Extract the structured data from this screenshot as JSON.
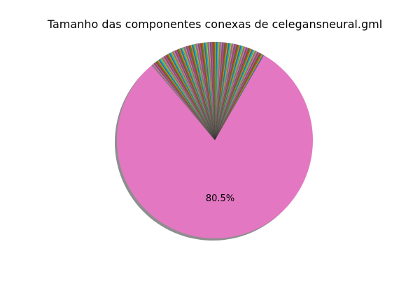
{
  "chart_data": {
    "type": "pie",
    "title": "Tamanho das componentes conexas de celegansneural.gml",
    "shadow": true,
    "start_angle_deg": 60,
    "major_slice": {
      "percent": 80.5,
      "label": "80.5%",
      "color": "#e377c2"
    },
    "minor_slices": {
      "count": 98,
      "percent_each": 0.199,
      "colors": [
        "#1f77b4",
        "#ff7f0e",
        "#2ca02c",
        "#d62728",
        "#9467bd",
        "#8c564b",
        "#e377c2",
        "#7f7f7f",
        "#bcbd22",
        "#17becf"
      ]
    }
  }
}
